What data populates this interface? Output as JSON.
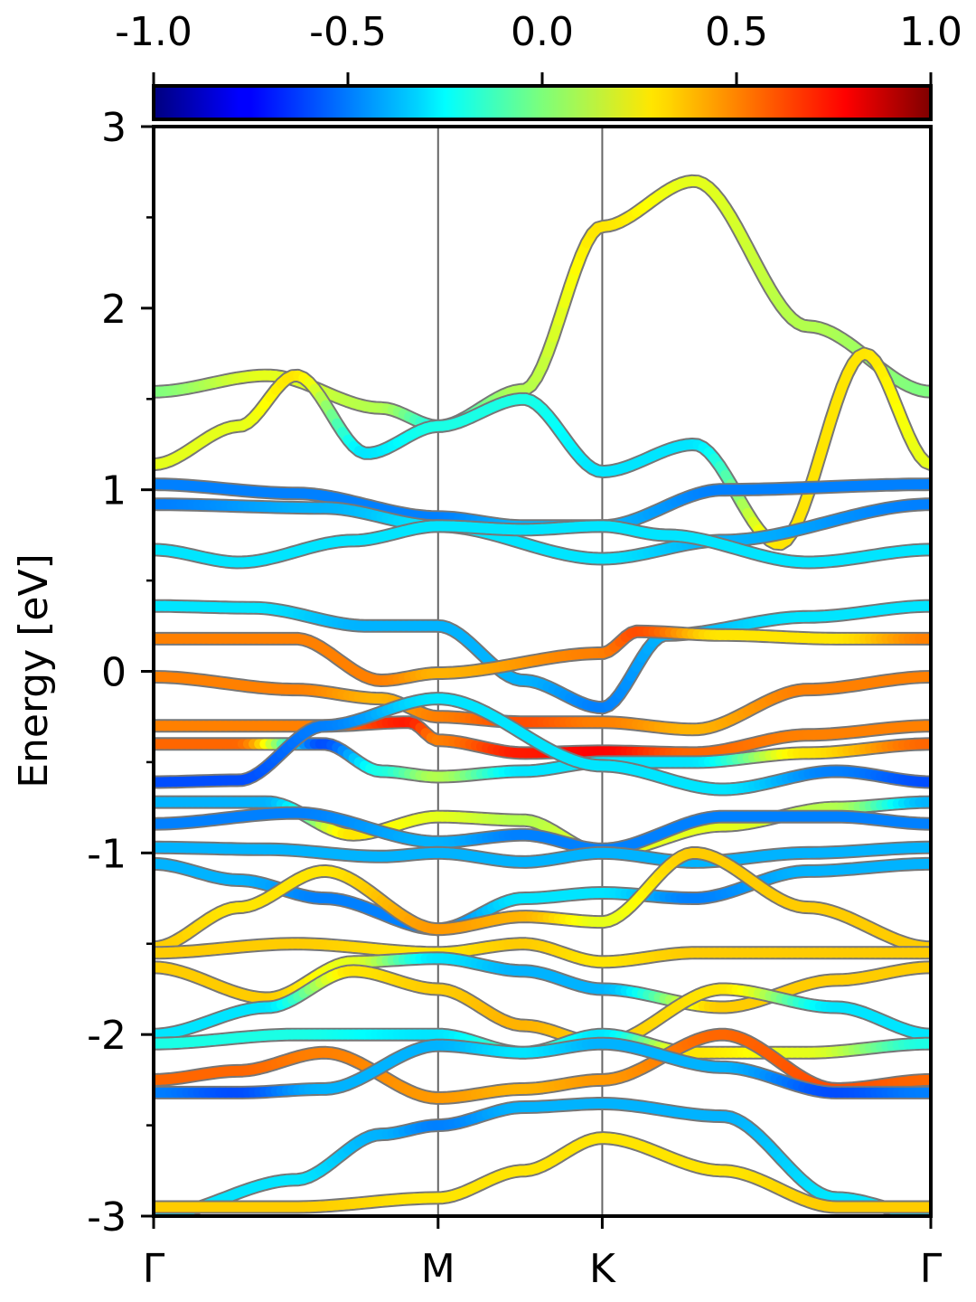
{
  "chart_data": {
    "type": "line",
    "ylabel": "Energy [eV]",
    "ylim": [
      -3,
      3
    ],
    "y_ticks": [
      {
        "label": "3",
        "value": 3
      },
      {
        "label": "2",
        "value": 2
      },
      {
        "label": "1",
        "value": 1
      },
      {
        "label": "0",
        "value": 0
      },
      {
        "label": "-1",
        "value": -1
      },
      {
        "label": "-2",
        "value": -2
      },
      {
        "label": "-3",
        "value": -3
      }
    ],
    "k_points": [
      {
        "label": "Γ",
        "k": 0
      },
      {
        "label": "M",
        "k": 1
      },
      {
        "label": "K",
        "k": 1.577
      },
      {
        "label": "Γ",
        "k": 2.732
      }
    ],
    "colorbar": {
      "colormap": "jet",
      "range": [
        -1.0,
        1.0
      ],
      "tick_labels": [
        "-1.0",
        "-0.5",
        "0.0",
        "0.5",
        "1.0"
      ],
      "tick_values": [
        -1.0,
        -0.5,
        0.0,
        0.5,
        1.0
      ]
    },
    "grid": false,
    "series": [
      {
        "k": [
          0,
          0.4,
          0.8,
          1,
          1.3,
          1.577,
          1.9,
          2.3,
          2.732
        ],
        "energy": [
          1.54,
          1.63,
          1.45,
          1.35,
          1.55,
          2.45,
          2.7,
          1.9,
          1.54
        ],
        "weight": [
          0.0,
          0.2,
          0.1,
          -0.2,
          0.1,
          0.3,
          0.2,
          0.1,
          0.0
        ]
      },
      {
        "k": [
          0,
          0.3,
          0.5,
          0.75,
          1,
          1.3,
          1.577,
          1.9,
          2.2,
          2.5,
          2.732
        ],
        "energy": [
          1.14,
          1.35,
          1.63,
          1.2,
          1.35,
          1.5,
          1.1,
          1.25,
          0.7,
          1.75,
          1.14
        ],
        "weight": [
          0.2,
          0.2,
          0.3,
          -0.3,
          -0.2,
          -0.2,
          -0.3,
          -0.3,
          0.3,
          0.3,
          0.2
        ]
      },
      {
        "k": [
          0,
          0.5,
          1,
          1.3,
          1.577,
          2.0,
          2.732
        ],
        "energy": [
          1.03,
          0.98,
          0.85,
          0.8,
          0.8,
          1.0,
          1.03
        ],
        "weight": [
          -0.5,
          -0.5,
          -0.5,
          -0.4,
          -0.4,
          -0.5,
          -0.5
        ]
      },
      {
        "k": [
          0,
          0.6,
          1,
          1.577,
          2.0,
          2.732
        ],
        "energy": [
          0.92,
          0.9,
          0.8,
          0.62,
          0.72,
          0.92
        ],
        "weight": [
          -0.5,
          -0.4,
          -0.3,
          -0.3,
          -0.4,
          -0.5
        ]
      },
      {
        "k": [
          0,
          0.3,
          0.7,
          1,
          1.3,
          1.577,
          1.8,
          2.3,
          2.732
        ],
        "energy": [
          0.67,
          0.6,
          0.72,
          0.8,
          0.78,
          0.8,
          0.75,
          0.6,
          0.67
        ],
        "weight": [
          -0.3,
          -0.3,
          -0.3,
          -0.3,
          -0.3,
          -0.3,
          -0.3,
          -0.3,
          -0.3
        ]
      },
      {
        "k": [
          0,
          0.35,
          0.75,
          1,
          1.3,
          1.577,
          1.8,
          2.3,
          2.732
        ],
        "energy": [
          0.36,
          0.35,
          0.25,
          0.25,
          -0.05,
          -0.2,
          0.2,
          0.3,
          0.36
        ],
        "weight": [
          -0.3,
          -0.3,
          -0.4,
          -0.4,
          -0.4,
          -0.5,
          -0.4,
          -0.3,
          -0.3
        ]
      },
      {
        "k": [
          0,
          0.5,
          0.8,
          1,
          1.577,
          1.7,
          2.0,
          2.4,
          2.732
        ],
        "energy": [
          0.18,
          0.18,
          -0.05,
          -0.01,
          0.1,
          0.22,
          0.2,
          0.18,
          0.18
        ],
        "weight": [
          0.5,
          0.5,
          0.5,
          0.4,
          0.5,
          0.6,
          0.3,
          0.3,
          0.5
        ]
      },
      {
        "k": [
          0,
          0.5,
          0.8,
          1,
          1.3,
          1.577,
          1.9,
          2.3,
          2.732
        ],
        "energy": [
          -0.03,
          -0.1,
          -0.15,
          -0.25,
          -0.28,
          -0.28,
          -0.32,
          -0.1,
          -0.03
        ],
        "weight": [
          0.5,
          0.5,
          0.4,
          0.5,
          0.6,
          0.5,
          0.4,
          0.5,
          0.5
        ]
      },
      {
        "k": [
          0,
          0.6,
          0.9,
          1,
          1.3,
          1.577,
          1.9,
          2.3,
          2.732
        ],
        "energy": [
          -0.3,
          -0.3,
          -0.28,
          -0.38,
          -0.45,
          -0.44,
          -0.45,
          -0.35,
          -0.3
        ],
        "weight": [
          0.5,
          0.5,
          0.7,
          0.5,
          0.7,
          0.75,
          0.55,
          0.5,
          0.5
        ]
      },
      {
        "k": [
          0,
          0.3,
          0.6,
          0.8,
          1,
          1.3,
          1.577,
          1.9,
          2.3,
          2.732
        ],
        "energy": [
          -0.4,
          -0.4,
          -0.4,
          -0.55,
          -0.58,
          -0.55,
          -0.5,
          -0.5,
          -0.45,
          -0.4
        ],
        "weight": [
          0.55,
          0.55,
          -0.6,
          -0.2,
          0.1,
          -0.3,
          -0.3,
          -0.3,
          0.3,
          0.55
        ]
      },
      {
        "k": [
          0,
          0.3,
          0.6,
          1,
          1.577,
          2.0,
          2.4,
          2.732
        ],
        "energy": [
          -0.61,
          -0.6,
          -0.3,
          -0.15,
          -0.52,
          -0.65,
          -0.55,
          -0.61
        ],
        "weight": [
          -0.6,
          -0.6,
          -0.5,
          -0.3,
          -0.3,
          -0.3,
          -0.5,
          -0.6
        ]
      },
      {
        "k": [
          0,
          0.4,
          0.7,
          1,
          1.3,
          1.577,
          2.0,
          2.4,
          2.732
        ],
        "energy": [
          -0.72,
          -0.72,
          -0.9,
          -0.8,
          -0.82,
          -1.0,
          -0.85,
          -0.75,
          -0.72
        ],
        "weight": [
          -0.4,
          -0.4,
          0.3,
          0.2,
          0.1,
          0.2,
          0.2,
          0.1,
          -0.4
        ]
      },
      {
        "k": [
          0,
          0.5,
          1,
          1.3,
          1.577,
          2.0,
          2.4,
          2.732
        ],
        "energy": [
          -0.84,
          -0.78,
          -0.94,
          -0.9,
          -0.98,
          -0.8,
          -0.8,
          -0.84
        ],
        "weight": [
          -0.5,
          -0.5,
          -0.4,
          -0.5,
          -0.5,
          -0.5,
          -0.5,
          -0.5
        ]
      },
      {
        "k": [
          0,
          0.4,
          0.8,
          1,
          1.3,
          1.577,
          1.9,
          2.3,
          2.732
        ],
        "energy": [
          -0.97,
          -0.98,
          -1.02,
          -1.0,
          -1.05,
          -1.0,
          -1.05,
          -1.0,
          -0.97
        ],
        "weight": [
          -0.4,
          -0.4,
          -0.4,
          -0.4,
          -0.4,
          -0.4,
          -0.4,
          -0.4,
          -0.4
        ]
      },
      {
        "k": [
          0,
          0.3,
          0.6,
          1,
          1.3,
          1.577,
          1.9,
          2.3,
          2.732
        ],
        "energy": [
          -1.06,
          -1.15,
          -1.25,
          -1.42,
          -1.25,
          -1.22,
          -1.25,
          -1.1,
          -1.06
        ],
        "weight": [
          -0.4,
          -0.4,
          -0.5,
          -0.5,
          -0.3,
          -0.3,
          -0.5,
          -0.4,
          -0.4
        ]
      },
      {
        "k": [
          0,
          0.3,
          0.6,
          1,
          1.3,
          1.577,
          1.9,
          2.3,
          2.732
        ],
        "energy": [
          -1.52,
          -1.3,
          -1.1,
          -1.42,
          -1.35,
          -1.38,
          -1.0,
          -1.3,
          -1.52
        ],
        "weight": [
          0.35,
          0.3,
          0.3,
          0.45,
          0.4,
          0.2,
          0.35,
          0.35,
          0.35
        ]
      },
      {
        "k": [
          0,
          0.5,
          1,
          1.3,
          1.577,
          1.9,
          2.3,
          2.732
        ],
        "energy": [
          -1.55,
          -1.5,
          -1.55,
          -1.5,
          -1.6,
          -1.55,
          -1.55,
          -1.55
        ],
        "weight": [
          0.35,
          0.35,
          0.3,
          0.35,
          0.3,
          0.35,
          0.35,
          0.35
        ]
      },
      {
        "k": [
          0,
          0.4,
          0.7,
          1,
          1.3,
          1.577,
          2.0,
          2.4,
          2.732
        ],
        "energy": [
          -1.63,
          -1.8,
          -1.6,
          -1.58,
          -1.65,
          -1.75,
          -1.85,
          -1.7,
          -1.63
        ],
        "weight": [
          0.35,
          0.35,
          0.2,
          -0.3,
          -0.4,
          -0.4,
          0.35,
          0.35,
          0.35
        ]
      },
      {
        "k": [
          0,
          0.4,
          0.7,
          1,
          1.3,
          1.577,
          2.0,
          2.4,
          2.732
        ],
        "energy": [
          -2.0,
          -1.85,
          -1.65,
          -1.75,
          -1.95,
          -2.05,
          -1.75,
          -1.85,
          -2.0
        ],
        "weight": [
          -0.3,
          -0.3,
          0.3,
          0.35,
          0.4,
          0.35,
          0.3,
          -0.3,
          -0.3
        ]
      },
      {
        "k": [
          0,
          0.5,
          1,
          1.3,
          1.577,
          1.9,
          2.3,
          2.732
        ],
        "energy": [
          -2.05,
          -2.0,
          -2.0,
          -2.1,
          -2.0,
          -2.1,
          -2.1,
          -2.05
        ],
        "weight": [
          -0.2,
          -0.2,
          -0.3,
          -0.1,
          -0.3,
          0.3,
          0.2,
          -0.2
        ]
      },
      {
        "k": [
          0,
          0.3,
          0.6,
          1,
          1.3,
          1.577,
          2.0,
          2.4,
          2.732
        ],
        "energy": [
          -2.25,
          -2.2,
          -2.1,
          -2.35,
          -2.3,
          -2.25,
          -2.0,
          -2.3,
          -2.25
        ],
        "weight": [
          0.55,
          0.55,
          0.5,
          0.45,
          0.4,
          0.45,
          0.55,
          0.6,
          0.55
        ]
      },
      {
        "k": [
          0,
          0.3,
          0.6,
          1,
          1.3,
          1.577,
          2.0,
          2.4,
          2.732
        ],
        "energy": [
          -2.32,
          -2.32,
          -2.3,
          -2.06,
          -2.1,
          -2.05,
          -2.18,
          -2.32,
          -2.32
        ],
        "weight": [
          -0.5,
          -0.6,
          -0.4,
          -0.4,
          -0.3,
          -0.4,
          -0.4,
          -0.6,
          -0.5
        ]
      },
      {
        "k": [
          0,
          0.5,
          0.8,
          1,
          1.3,
          1.577,
          2.0,
          2.4,
          2.732
        ],
        "energy": [
          -3.0,
          -2.8,
          -2.55,
          -2.5,
          -2.4,
          -2.38,
          -2.45,
          -2.9,
          -3.0
        ],
        "weight": [
          -0.3,
          -0.3,
          -0.4,
          -0.5,
          -0.4,
          -0.4,
          -0.4,
          -0.3,
          -0.3
        ]
      },
      {
        "k": [
          0,
          0.5,
          1,
          1.3,
          1.577,
          2.0,
          2.4,
          2.732
        ],
        "energy": [
          -2.95,
          -2.95,
          -2.9,
          -2.75,
          -2.57,
          -2.75,
          -2.95,
          -2.95
        ],
        "weight": [
          0.35,
          0.35,
          0.3,
          0.3,
          0.3,
          0.3,
          0.35,
          0.35
        ]
      }
    ]
  }
}
